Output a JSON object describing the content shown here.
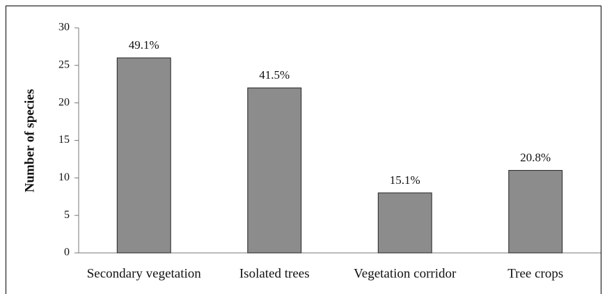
{
  "chart_data": {
    "type": "bar",
    "y_label": "Number of species",
    "categories": [
      "Secondary vegetation",
      "Isolated trees",
      "Vegetation corridor",
      "Tree crops"
    ],
    "values": [
      26,
      22,
      8,
      11
    ],
    "annotations": [
      "49.1%",
      "41.5%",
      "15.1%",
      "20.8%"
    ],
    "color": "#8c8c8c",
    "ylim": [
      0,
      30
    ],
    "yticks": [
      0,
      5,
      10,
      15,
      20,
      25,
      30
    ],
    "grid": false
  }
}
